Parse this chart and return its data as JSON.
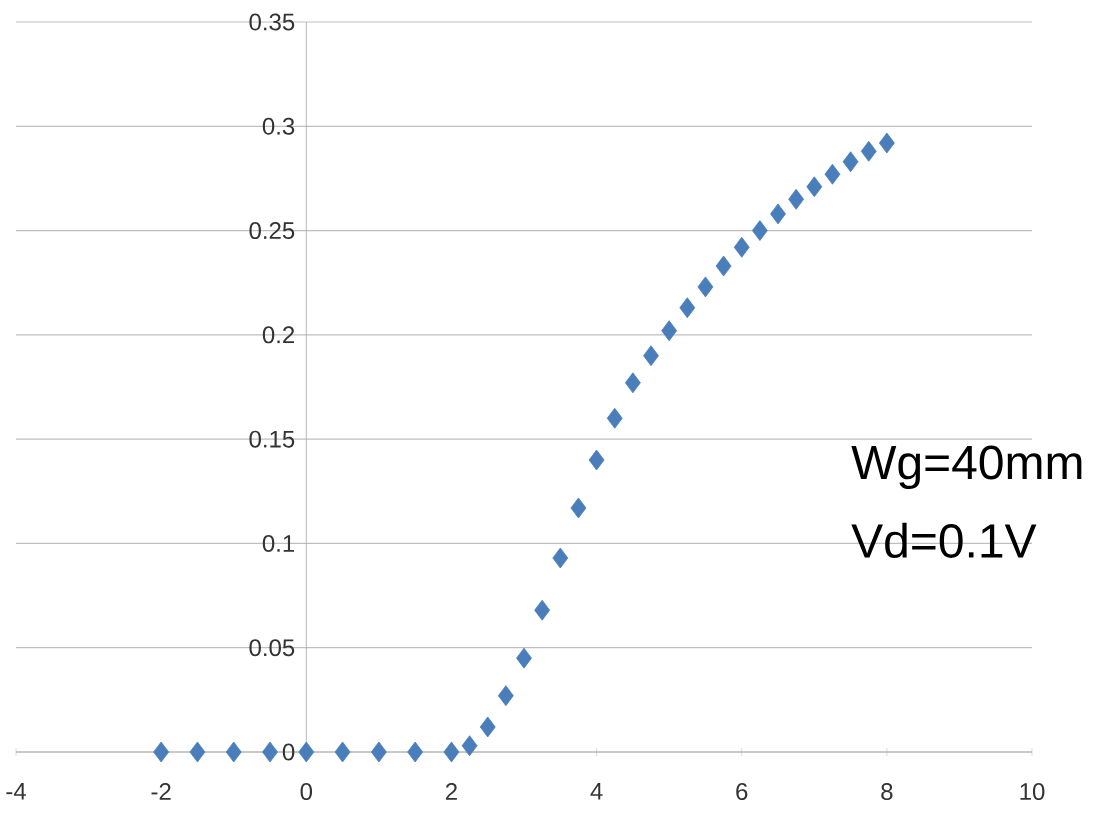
{
  "chart_data": {
    "type": "scatter",
    "marker": "diamond",
    "grid": "y",
    "x": [
      -2,
      -1.5,
      -1,
      -0.5,
      0,
      0.5,
      1,
      1.5,
      2,
      2.25,
      2.5,
      2.75,
      3,
      3.25,
      3.5,
      3.75,
      4,
      4.25,
      4.5,
      4.75,
      5,
      5.25,
      5.5,
      5.75,
      6,
      6.25,
      6.5,
      6.75,
      7,
      7.25,
      7.5,
      7.75,
      8
    ],
    "series": [
      {
        "color": "#4a7ebb",
        "values": [
          0,
          0,
          0,
          0,
          0,
          0,
          0,
          0,
          0,
          0.003,
          0.012,
          0.027,
          0.045,
          0.068,
          0.093,
          0.117,
          0.14,
          0.16,
          0.177,
          0.19,
          0.202,
          0.213,
          0.223,
          0.233,
          0.242,
          0.25,
          0.258,
          0.265,
          0.271,
          0.277,
          0.283,
          0.288,
          0.292
        ]
      }
    ],
    "xlim": [
      -4,
      10
    ],
    "ylim": [
      0,
      0.35
    ],
    "xticks": [
      -4,
      -2,
      0,
      2,
      4,
      6,
      8,
      10
    ],
    "yticks": [
      0,
      0.05,
      0.1,
      0.15,
      0.2,
      0.25,
      0.3,
      0.35
    ],
    "annotations": [
      "Wg=40mm",
      "Vd=0.1V"
    ]
  }
}
